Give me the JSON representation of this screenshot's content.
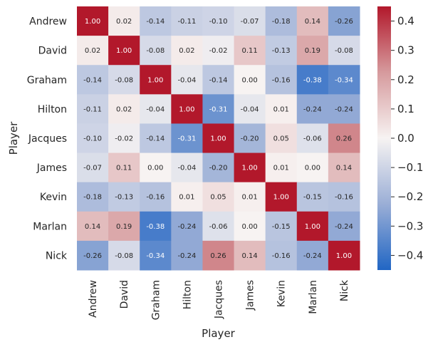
{
  "chart_data": {
    "type": "heatmap",
    "title": "",
    "xlabel": "Player",
    "ylabel": "Player",
    "x_categories": [
      "Andrew",
      "David",
      "Graham",
      "Hilton",
      "Jacques",
      "James",
      "Kevin",
      "Marlan",
      "Nick"
    ],
    "y_categories": [
      "Andrew",
      "David",
      "Graham",
      "Hilton",
      "Jacques",
      "James",
      "Kevin",
      "Marlan",
      "Nick"
    ],
    "values": [
      [
        1.0,
        0.02,
        -0.14,
        -0.11,
        -0.1,
        -0.07,
        -0.18,
        0.14,
        -0.26
      ],
      [
        0.02,
        1.0,
        -0.08,
        0.02,
        -0.02,
        0.11,
        -0.13,
        0.19,
        -0.08
      ],
      [
        -0.14,
        -0.08,
        1.0,
        -0.04,
        -0.14,
        0.0,
        -0.16,
        -0.38,
        -0.34
      ],
      [
        -0.11,
        0.02,
        -0.04,
        1.0,
        -0.31,
        -0.04,
        0.01,
        -0.24,
        -0.24
      ],
      [
        -0.1,
        -0.02,
        -0.14,
        -0.31,
        1.0,
        -0.2,
        0.05,
        -0.06,
        0.26
      ],
      [
        -0.07,
        0.11,
        0.0,
        -0.04,
        -0.2,
        1.0,
        0.01,
        0.0,
        0.14
      ],
      [
        -0.18,
        -0.13,
        -0.16,
        0.01,
        0.05,
        0.01,
        1.0,
        -0.15,
        -0.16
      ],
      [
        0.14,
        0.19,
        -0.38,
        -0.24,
        -0.06,
        0.0,
        -0.15,
        1.0,
        -0.24
      ],
      [
        -0.26,
        -0.08,
        -0.34,
        -0.24,
        0.26,
        0.14,
        -0.16,
        -0.24,
        1.0
      ]
    ],
    "annotation_format": "0.00",
    "colormap": "vlag",
    "vmin": -0.45,
    "vmax": 0.45,
    "colorbar": {
      "ticks": [
        0.4,
        0.3,
        0.2,
        0.1,
        0.0,
        -0.1,
        -0.2,
        -0.3,
        -0.4
      ],
      "tick_labels": [
        "0.4",
        "0.3",
        "0.2",
        "0.1",
        "0.0",
        "−0.1",
        "−0.2",
        "−0.3",
        "−0.4"
      ]
    },
    "colors": {
      "negative": "#2166c4",
      "neutral": "#f7f3f2",
      "positive": "#b2182b",
      "text_dark": "#262626",
      "text_light": "#ffffff"
    }
  }
}
